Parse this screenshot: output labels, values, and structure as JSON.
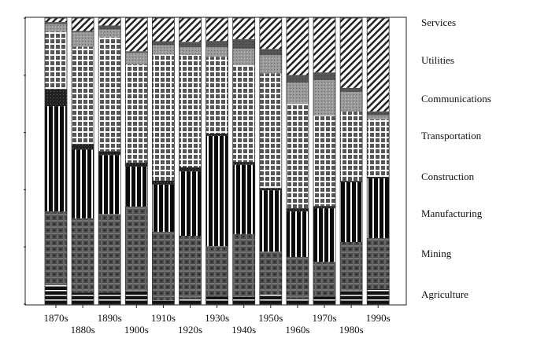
{
  "chart_data": {
    "type": "bar",
    "stacked": true,
    "normalized": true,
    "title": "",
    "xlabel": "",
    "ylabel": "",
    "ylim": [
      0,
      100
    ],
    "categories": [
      "1870s",
      "1880s",
      "1890s",
      "1900s",
      "1910s",
      "1920s",
      "1930s",
      "1940s",
      "1950s",
      "1960s",
      "1970s",
      "1980s",
      "1990s"
    ],
    "series": [
      {
        "name": "Agriculture",
        "pattern": "horizontal-stripes",
        "values": [
          6.6,
          4.0,
          4.0,
          4.7,
          1.4,
          1.9,
          2.7,
          2.5,
          3.3,
          1.9,
          2.7,
          4.7,
          5.2
        ]
      },
      {
        "name": "Mining",
        "pattern": "plaid",
        "values": [
          25.8,
          26.0,
          27.5,
          29.4,
          23.9,
          22.0,
          17.6,
          22.0,
          15.1,
          14.6,
          12.1,
          17.0,
          17.9
        ]
      },
      {
        "name": "Manufacturing",
        "pattern": "vertical-stripes",
        "values": [
          36.8,
          24.0,
          20.6,
          14.0,
          16.5,
          22.5,
          38.5,
          24.2,
          21.4,
          15.9,
          18.7,
          20.9,
          20.9
        ]
      },
      {
        "name": "Construction",
        "pattern": "dark-band",
        "values": [
          6.0,
          2.0,
          1.4,
          1.4,
          1.4,
          1.4,
          0.8,
          1.0,
          0.8,
          1.1,
          0.8,
          0.5,
          0.5
        ]
      },
      {
        "name": "Transportation",
        "pattern": "grid",
        "values": [
          20.0,
          34.0,
          39.8,
          34.3,
          44.0,
          39.3,
          26.9,
          33.8,
          40.1,
          36.5,
          31.6,
          24.2,
          20.1
        ]
      },
      {
        "name": "Communications",
        "pattern": "gray",
        "values": [
          2.7,
          5.0,
          2.7,
          4.1,
          3.3,
          2.7,
          3.3,
          5.8,
          6.3,
          7.4,
          12.4,
          6.9,
          1.4
        ]
      },
      {
        "name": "Utilities",
        "pattern": "dark-gray",
        "values": [
          0.7,
          0.5,
          1.4,
          0.5,
          1.4,
          1.9,
          2.2,
          3.3,
          2.2,
          2.7,
          2.7,
          1.4,
          1.4
        ]
      },
      {
        "name": "Services",
        "pattern": "diagonal",
        "values": [
          1.4,
          4.5,
          2.6,
          11.6,
          8.1,
          8.3,
          8.0,
          7.4,
          10.8,
          19.9,
          19.0,
          24.4,
          32.6
        ]
      }
    ],
    "legend_order": [
      "Services",
      "Utilities",
      "Communications",
      "Transportation",
      "Construction",
      "Manufacturing",
      "Mining",
      "Agriculture"
    ],
    "legend": "right",
    "grid": false
  }
}
